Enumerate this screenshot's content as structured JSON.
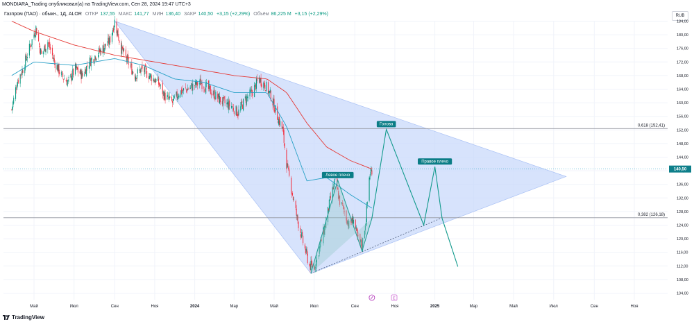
{
  "header": {
    "publisher_line": "MONDIARA_Trading опубликовал(а) на TradingView.com, Сен 28, 2024 19:47 UTC+3",
    "symbol_line": "Газпром (ПАО) · обыкн., 1Д, ALOR",
    "open_label": "ОТКР",
    "open_value": "137,55",
    "high_label": "МАКС",
    "high_value": "141,77",
    "low_label": "МИН",
    "low_value": "136,40",
    "close_label": "ЗАКР",
    "close_value": "140,50",
    "change": "+3,15 (+2,29%)",
    "volume_label": "Объём",
    "volume_value": "86,225 M",
    "volume_change": "+3,15 (+2,29%)"
  },
  "currency_badge": "RUB",
  "footer": {
    "brand": "TradingView"
  },
  "colors": {
    "up": "#089981",
    "down": "#f23645",
    "ma_long": "#e53935",
    "ma_short": "#26a0c6",
    "triangle_fill": "#c9d9fb",
    "pattern_line": "#119a8c",
    "label_bg": "#0b7d86",
    "price_marker": "#0e7f8a"
  },
  "chart_data": {
    "type": "candlestick",
    "y_axis": {
      "min": 102,
      "max": 186,
      "ticks": [
        104,
        108,
        112,
        116,
        120,
        124,
        128,
        132,
        136,
        140,
        144,
        148,
        152,
        156,
        160,
        164,
        168,
        172,
        176,
        180,
        184
      ],
      "tick_labels": [
        "104,00",
        "108,00",
        "112,00",
        "116,00",
        "120,00",
        "124,00",
        "128,00",
        "132,00",
        "136,00",
        "140,00",
        "144,00",
        "148,00",
        "152,00",
        "156,00",
        "160,00",
        "164,00",
        "168,00",
        "172,00",
        "176,00",
        "180,00",
        "184,00"
      ]
    },
    "x_axis": {
      "labels": [
        "Май",
        "Июл",
        "Сен",
        "Ноя",
        "2024",
        "Мар",
        "Май",
        "Июл",
        "Сен",
        "Ноя",
        "2025",
        "Мар",
        "Май",
        "Июл",
        "Сен",
        "Ноя"
      ],
      "bold_labels": [
        "2024",
        "2025"
      ],
      "label_dates": [
        "2023-05-01",
        "2023-07-01",
        "2023-09-01",
        "2023-11-01",
        "2024-01-01",
        "2024-03-01",
        "2024-05-01",
        "2024-07-01",
        "2024-09-01",
        "2024-11-01",
        "2025-01-01",
        "2025-03-01",
        "2025-05-01",
        "2025-07-01",
        "2025-09-01",
        "2025-11-01"
      ]
    },
    "price_anchors": [
      [
        "2023-03-28",
        158
      ],
      [
        "2023-04-05",
        166
      ],
      [
        "2023-04-14",
        170
      ],
      [
        "2023-04-24",
        176
      ],
      [
        "2023-05-04",
        182
      ],
      [
        "2023-05-12",
        174
      ],
      [
        "2023-05-22",
        178
      ],
      [
        "2023-06-01",
        172
      ],
      [
        "2023-06-12",
        168
      ],
      [
        "2023-06-22",
        166
      ],
      [
        "2023-07-03",
        170
      ],
      [
        "2023-07-14",
        168
      ],
      [
        "2023-07-24",
        172
      ],
      [
        "2023-08-03",
        174
      ],
      [
        "2023-08-14",
        176
      ],
      [
        "2023-08-24",
        178
      ],
      [
        "2023-09-01",
        184
      ],
      [
        "2023-09-11",
        176
      ],
      [
        "2023-09-21",
        172
      ],
      [
        "2023-10-02",
        168
      ],
      [
        "2023-10-12",
        170
      ],
      [
        "2023-10-24",
        168
      ],
      [
        "2023-11-06",
        166
      ],
      [
        "2023-11-16",
        162
      ],
      [
        "2023-11-28",
        160
      ],
      [
        "2023-12-08",
        163
      ],
      [
        "2023-12-20",
        164
      ],
      [
        "2024-01-10",
        166
      ],
      [
        "2024-01-22",
        164
      ],
      [
        "2024-02-02",
        162
      ],
      [
        "2024-02-14",
        160
      ],
      [
        "2024-02-26",
        159
      ],
      [
        "2024-03-07",
        157
      ],
      [
        "2024-03-18",
        161
      ],
      [
        "2024-03-28",
        163
      ],
      [
        "2024-04-08",
        167
      ],
      [
        "2024-04-18",
        165
      ],
      [
        "2024-04-26",
        162
      ],
      [
        "2024-05-06",
        156
      ],
      [
        "2024-05-14",
        152
      ],
      [
        "2024-05-20",
        142
      ],
      [
        "2024-05-28",
        134
      ],
      [
        "2024-06-05",
        126
      ],
      [
        "2024-06-14",
        119
      ],
      [
        "2024-06-24",
        112
      ],
      [
        "2024-07-02",
        112
      ],
      [
        "2024-07-10",
        118
      ],
      [
        "2024-07-18",
        124
      ],
      [
        "2024-07-26",
        132
      ],
      [
        "2024-08-02",
        137
      ],
      [
        "2024-08-09",
        131
      ],
      [
        "2024-08-16",
        128
      ],
      [
        "2024-08-23",
        124
      ],
      [
        "2024-08-30",
        126
      ],
      [
        "2024-09-05",
        120
      ],
      [
        "2024-09-12",
        118
      ],
      [
        "2024-09-18",
        126
      ],
      [
        "2024-09-23",
        138
      ],
      [
        "2024-09-27",
        140.5
      ]
    ],
    "ma_long_anchors": [
      [
        "2023-03-28",
        184
      ],
      [
        "2023-05-01",
        181
      ],
      [
        "2023-07-01",
        177
      ],
      [
        "2023-09-01",
        174
      ],
      [
        "2023-11-01",
        172
      ],
      [
        "2024-01-01",
        170
      ],
      [
        "2024-03-01",
        168
      ],
      [
        "2024-04-20",
        167
      ],
      [
        "2024-05-20",
        163
      ],
      [
        "2024-06-20",
        154
      ],
      [
        "2024-07-20",
        147
      ],
      [
        "2024-08-25",
        143
      ],
      [
        "2024-09-27",
        140.5
      ]
    ],
    "ma_short_anchors": [
      [
        "2023-03-28",
        168
      ],
      [
        "2023-05-01",
        172
      ],
      [
        "2023-07-01",
        171
      ],
      [
        "2023-09-01",
        173
      ],
      [
        "2023-10-15",
        171
      ],
      [
        "2023-12-01",
        167
      ],
      [
        "2024-01-15",
        166
      ],
      [
        "2024-03-01",
        163
      ],
      [
        "2024-04-20",
        163
      ],
      [
        "2024-05-20",
        153
      ],
      [
        "2024-06-20",
        137
      ],
      [
        "2024-07-20",
        138
      ],
      [
        "2024-08-25",
        133
      ],
      [
        "2024-09-27",
        129
      ]
    ],
    "last_price": {
      "value": 140.5,
      "label": "140,50"
    },
    "triangle": {
      "points": [
        [
          "2023-09-01",
          184
        ],
        [
          "2024-06-26",
          109.8
        ],
        [
          "2025-07-20",
          138.3
        ]
      ]
    },
    "support_line": {
      "from": [
        "2024-06-26",
        109.8
      ],
      "to": [
        "2025-01-10",
        126
      ]
    },
    "head_and_shoulders": {
      "points": [
        [
          "2024-06-26",
          109.8
        ],
        [
          "2024-08-06",
          137.2
        ],
        [
          "2024-09-12",
          116.4
        ],
        [
          "2024-09-27",
          126
        ],
        [
          "2024-10-19",
          152.2
        ],
        [
          "2024-12-15",
          124
        ],
        [
          "2025-01-01",
          141.2
        ],
        [
          "2025-01-12",
          126
        ],
        [
          "2025-02-05",
          111.8
        ]
      ],
      "labels": [
        {
          "text": "Левое плечо",
          "at": [
            "2024-08-06",
            137.2
          ]
        },
        {
          "text": "Голова",
          "at": [
            "2024-10-19",
            152.2
          ]
        },
        {
          "text": "Правое плечо",
          "at": [
            "2025-01-01",
            141.2
          ]
        }
      ]
    },
    "fib_levels": [
      {
        "value": 152.41,
        "label": "0,618 (152,41)"
      },
      {
        "value": 126.18,
        "label": "0,382 (126,18)"
      }
    ],
    "events": [
      {
        "date": "2024-09-27",
        "kind": "dividend-icon"
      },
      {
        "date": "2024-10-31",
        "kind": "earnings",
        "text": "E"
      }
    ]
  }
}
